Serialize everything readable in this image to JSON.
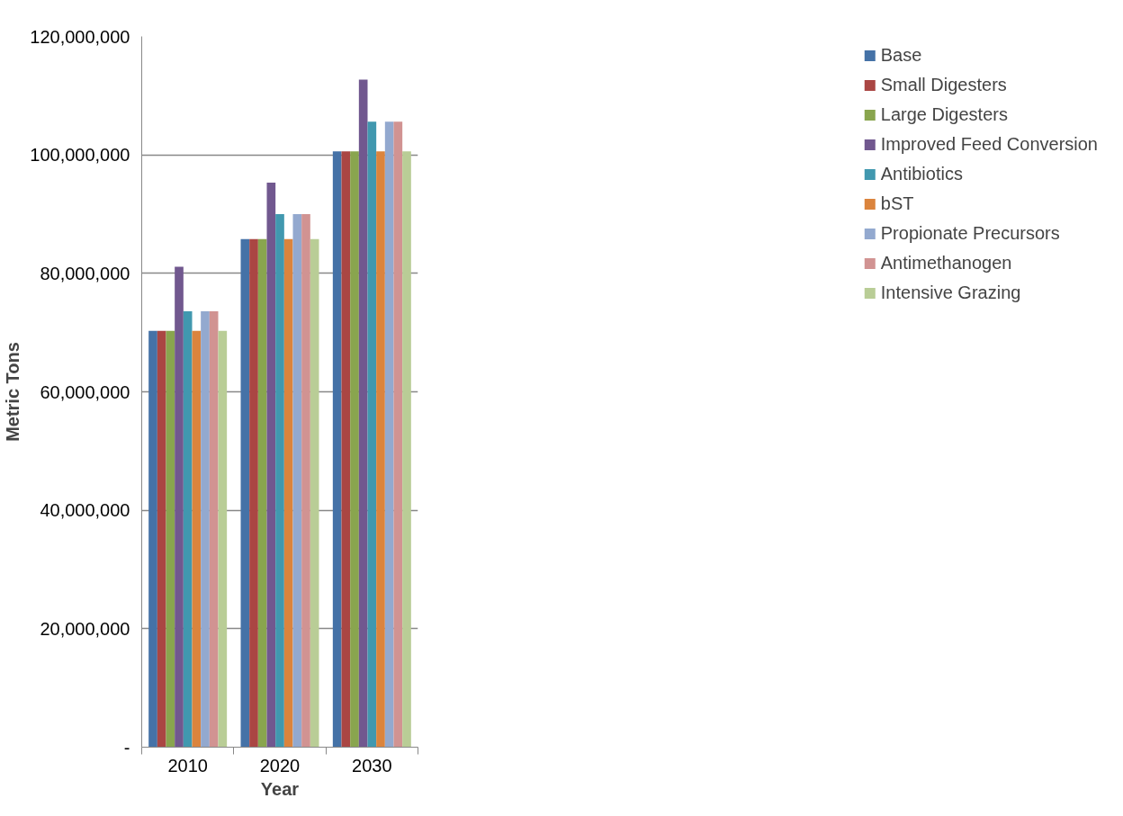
{
  "chart_data": {
    "type": "bar",
    "xlabel": "Year",
    "ylabel": "Metric Tons",
    "categories": [
      "2010",
      "2020",
      "2030"
    ],
    "ylim": [
      0,
      120000000
    ],
    "yticks": [
      {
        "value": 0,
        "label": "-"
      },
      {
        "value": 20000000,
        "label": "20,000,000"
      },
      {
        "value": 40000000,
        "label": "40,000,000"
      },
      {
        "value": 60000000,
        "label": "60,000,000"
      },
      {
        "value": 80000000,
        "label": "80,000,000"
      },
      {
        "value": 100000000,
        "label": "100,000,000"
      },
      {
        "value": 120000000,
        "label": "120,000,000"
      }
    ],
    "grid": "y",
    "legend": "right",
    "series": [
      {
        "name": "Base",
        "color": "#4572a7",
        "values": [
          70300000,
          85800000,
          100600000
        ]
      },
      {
        "name": "Small Digesters",
        "color": "#aa4643",
        "values": [
          70300000,
          85800000,
          100600000
        ]
      },
      {
        "name": "Large Digesters",
        "color": "#89a54e",
        "values": [
          70300000,
          85800000,
          100600000
        ]
      },
      {
        "name": "Improved Feed Conversion",
        "color": "#71588f",
        "values": [
          81100000,
          95300000,
          112700000
        ]
      },
      {
        "name": "Antibiotics",
        "color": "#4198af",
        "values": [
          73600000,
          90000000,
          105600000
        ]
      },
      {
        "name": "bST",
        "color": "#db843d",
        "values": [
          70300000,
          85800000,
          100600000
        ]
      },
      {
        "name": "Propionate Precursors",
        "color": "#93a9cf",
        "values": [
          73600000,
          90000000,
          105600000
        ]
      },
      {
        "name": "Antimethanogen",
        "color": "#d19392",
        "values": [
          73600000,
          90000000,
          105600000
        ]
      },
      {
        "name": "Intensive Grazing",
        "color": "#b9cd96",
        "values": [
          70300000,
          85800000,
          100600000
        ]
      }
    ]
  }
}
